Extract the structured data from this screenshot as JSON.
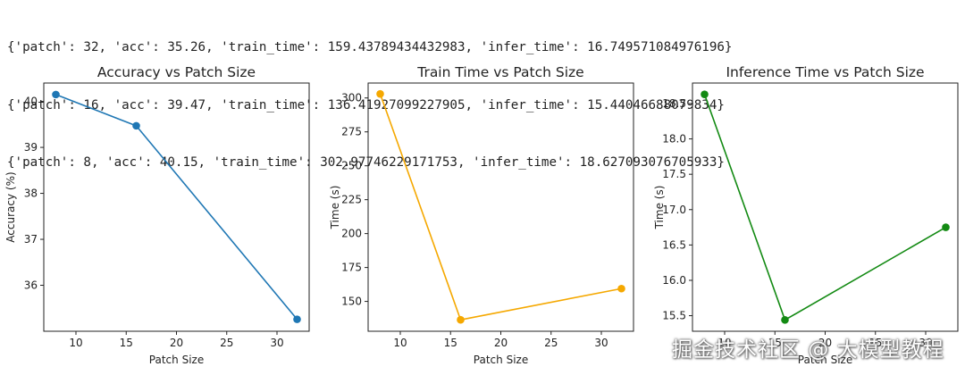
{
  "console_output": {
    "lines": [
      "{'patch': 32, 'acc': 35.26, 'train_time': 159.43789434432983, 'infer_time': 16.749571084976196}",
      "{'patch': 16, 'acc': 39.47, 'train_time': 136.41927099227905, 'infer_time': 15.44046688079834}",
      "{'patch': 8, 'acc': 40.15, 'train_time': 302.97746229171753, 'infer_time': 18.627093076705933}"
    ]
  },
  "chart_data": [
    {
      "type": "line",
      "title": "Accuracy vs Patch Size",
      "xlabel": "Patch Size",
      "ylabel": "Accuracy (%)",
      "x": [
        8,
        16,
        32
      ],
      "y": [
        40.15,
        39.47,
        35.26
      ],
      "xlim": [
        6.8,
        33.2
      ],
      "ylim": [
        35.0,
        40.4
      ],
      "xticks": [
        10,
        15,
        20,
        25,
        30
      ],
      "yticks": [
        36,
        37,
        38,
        39,
        40
      ],
      "color": "#1f77b4",
      "marker": "circle",
      "grid": false
    },
    {
      "type": "line",
      "title": "Train Time vs Patch Size",
      "xlabel": "Patch Size",
      "ylabel": "Time (s)",
      "x": [
        8,
        16,
        32
      ],
      "y": [
        302.98,
        136.42,
        159.44
      ],
      "xlim": [
        6.8,
        33.2
      ],
      "ylim": [
        128.0,
        311.0
      ],
      "xticks": [
        10,
        15,
        20,
        25,
        30
      ],
      "yticks": [
        150,
        175,
        200,
        225,
        250,
        275,
        300
      ],
      "color": "#f5a800",
      "marker": "circle",
      "grid": false
    },
    {
      "type": "line",
      "title": "Inference Time vs Patch Size",
      "xlabel": "Patch Size",
      "ylabel": "Time (s)",
      "x": [
        8,
        16,
        32
      ],
      "y": [
        18.63,
        15.44,
        16.75
      ],
      "xlim": [
        6.8,
        33.2
      ],
      "ylim": [
        15.28,
        18.79
      ],
      "xticks": [
        10,
        15,
        20,
        25,
        30
      ],
      "yticks": [
        15.5,
        16.0,
        16.5,
        17.0,
        17.5,
        18.0,
        18.5
      ],
      "color": "#138a13",
      "marker": "circle",
      "grid": false
    }
  ],
  "watermark": "掘金技术社区 @ 大模型教程"
}
